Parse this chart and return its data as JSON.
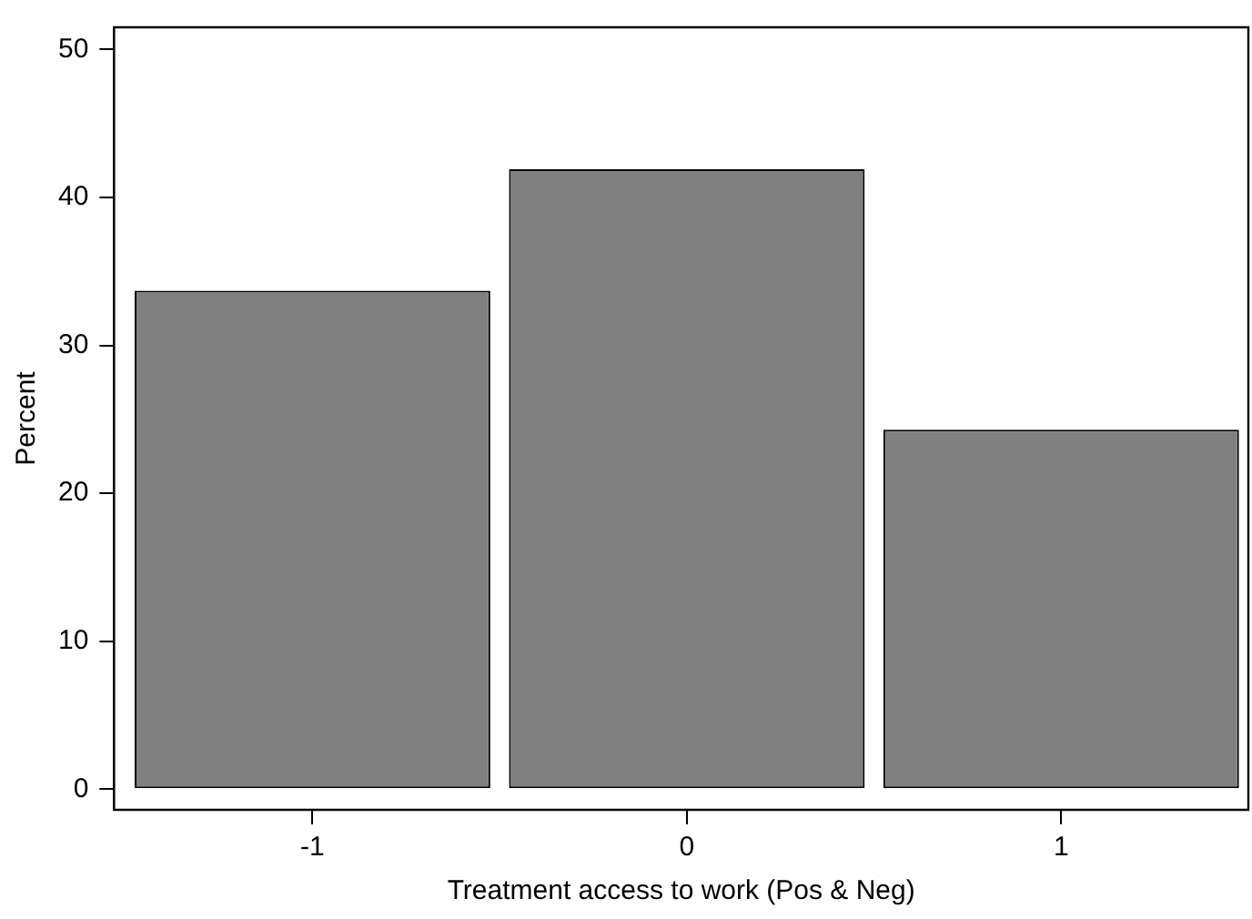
{
  "chart_data": {
    "type": "histogram",
    "xlabel": "Treatment access to work (Pos & Neg)",
    "ylabel": "Percent",
    "bins": [
      -1.5,
      -0.5,
      0.5,
      1.5
    ],
    "values": [
      33.7,
      41.9,
      24.3
    ],
    "color": "#808080",
    "xlim": [
      -1.53,
      1.5
    ],
    "xticks": [
      -1,
      0,
      1
    ],
    "ylim": [
      -1.4,
      51.5
    ],
    "yticks": [
      0,
      10,
      20,
      30,
      40,
      50
    ],
    "grid": false,
    "legend": false
  }
}
